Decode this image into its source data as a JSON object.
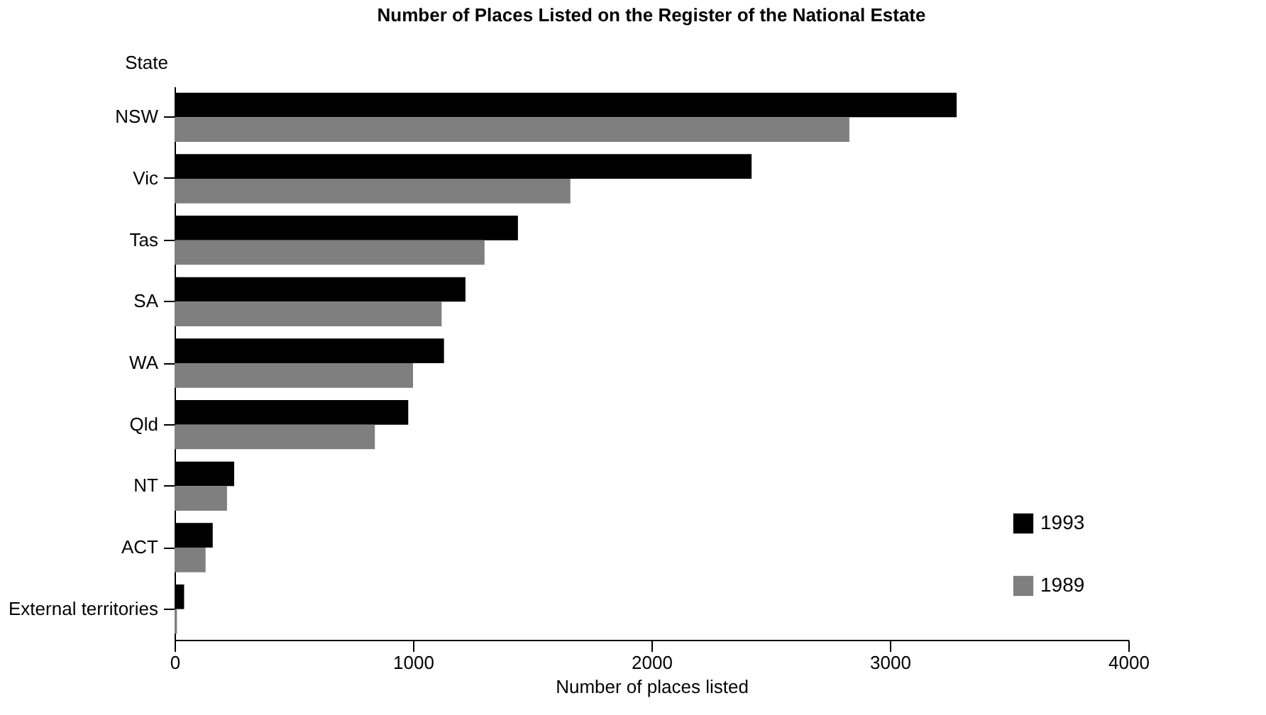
{
  "chart_data": {
    "type": "bar",
    "orientation": "horizontal",
    "title": "Number of Places Listed on the Register of the National Estate",
    "xlabel": "Number of places listed",
    "ylabel": "State",
    "categories": [
      "NSW",
      "Vic",
      "Tas",
      "SA",
      "WA",
      "Qld",
      "NT",
      "ACT",
      "External territories"
    ],
    "series": [
      {
        "name": "1993",
        "color": "#000000",
        "values": [
          3280,
          2420,
          1440,
          1220,
          1130,
          980,
          250,
          160,
          40
        ]
      },
      {
        "name": "1989",
        "color": "#7f7f7f",
        "values": [
          2830,
          1660,
          1300,
          1120,
          1000,
          840,
          220,
          130,
          10
        ]
      }
    ],
    "xlim": [
      0,
      4000
    ],
    "xticks": [
      0,
      1000,
      2000,
      3000,
      4000
    ],
    "grid": false,
    "legend": "bottom right"
  }
}
